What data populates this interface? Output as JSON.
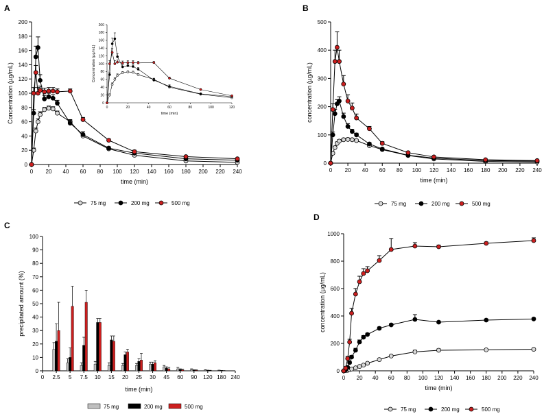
{
  "figure": {
    "panels": [
      "A",
      "B",
      "C",
      "D"
    ],
    "colors": {
      "s75": "#d9d9d9",
      "s200": "#000000",
      "s500": "#cc1f1f",
      "bar75": "#bfbfbf",
      "bar200": "#000000",
      "bar500": "#cc1f1f"
    }
  },
  "chart_data": [
    {
      "panel": "A",
      "type": "line",
      "xlabel": "time (min)",
      "ylabel": "Concentration (µg/mL)",
      "xlim": [
        0,
        240
      ],
      "ylim": [
        0,
        200
      ],
      "xticks": [
        0,
        20,
        40,
        60,
        80,
        100,
        120,
        140,
        160,
        180,
        200,
        220,
        240
      ],
      "yticks": [
        0,
        20,
        40,
        60,
        80,
        100,
        120,
        140,
        160,
        180,
        200
      ],
      "grid": false,
      "legend": "bottom",
      "series": [
        {
          "name": "75 mg",
          "x": [
            0,
            2.5,
            5,
            7.5,
            10,
            15,
            20,
            25,
            30,
            45,
            60,
            90,
            120,
            180,
            240
          ],
          "y": [
            0,
            20,
            47,
            60,
            70,
            77,
            79,
            78,
            72,
            60,
            40,
            22,
            13,
            5,
            3
          ],
          "err": [
            0,
            3,
            4,
            4,
            4,
            3,
            3,
            3,
            3,
            3,
            3,
            2,
            2,
            1,
            1
          ]
        },
        {
          "name": "200 mg",
          "x": [
            0,
            2.5,
            5,
            7.5,
            10,
            15,
            20,
            25,
            30,
            45,
            60,
            90,
            120,
            180,
            240
          ],
          "y": [
            0,
            72,
            151,
            164,
            118,
            92,
            95,
            93,
            86,
            58,
            42,
            23,
            16,
            8,
            6
          ],
          "err": [
            0,
            5,
            15,
            15,
            8,
            5,
            5,
            5,
            4,
            4,
            4,
            2,
            2,
            1,
            1
          ]
        },
        {
          "name": "500 mg",
          "x": [
            0,
            2.5,
            5,
            7.5,
            10,
            15,
            20,
            25,
            30,
            45,
            60,
            90,
            120,
            180,
            240
          ],
          "y": [
            0,
            100,
            129,
            100,
            104,
            102,
            103,
            103,
            102,
            103,
            63,
            34,
            18,
            11,
            8
          ],
          "err": [
            0,
            8,
            10,
            8,
            6,
            5,
            5,
            5,
            4,
            3,
            3,
            2,
            2,
            1,
            1
          ]
        }
      ],
      "inset": {
        "xlabel": "time (min)",
        "ylabel": "Concentration (µg/mL)",
        "xlim": [
          0,
          120
        ],
        "ylim": [
          0,
          200
        ],
        "xticks": [
          0,
          20,
          40,
          60,
          80,
          100,
          120
        ],
        "yticks": [
          0,
          20,
          40,
          60,
          80,
          100,
          120,
          140,
          160,
          180,
          200
        ]
      }
    },
    {
      "panel": "B",
      "type": "line",
      "xlabel": "time (min)",
      "ylabel": "concentration (µg/mL)",
      "xlim": [
        0,
        240
      ],
      "ylim": [
        0,
        500
      ],
      "xticks": [
        0,
        20,
        40,
        60,
        80,
        100,
        120,
        140,
        160,
        180,
        200,
        220,
        240
      ],
      "yticks": [
        0,
        100,
        200,
        300,
        400,
        500
      ],
      "grid": false,
      "legend": "bottom",
      "series": [
        {
          "name": "75 mg",
          "x": [
            0,
            2.5,
            5,
            7.5,
            10,
            15,
            20,
            25,
            30,
            45,
            60,
            90,
            120,
            180,
            240
          ],
          "y": [
            0,
            35,
            55,
            70,
            78,
            83,
            84,
            83,
            80,
            62,
            48,
            27,
            15,
            6,
            4
          ],
          "err": [
            0,
            4,
            5,
            5,
            5,
            5,
            5,
            5,
            4,
            4,
            3,
            2,
            2,
            1,
            1
          ]
        },
        {
          "name": "200 mg",
          "x": [
            0,
            2.5,
            5,
            7.5,
            10,
            15,
            20,
            25,
            30,
            45,
            60,
            90,
            120,
            180,
            240
          ],
          "y": [
            0,
            100,
            175,
            210,
            220,
            165,
            130,
            112,
            100,
            68,
            50,
            28,
            18,
            9,
            7
          ],
          "err": [
            0,
            10,
            15,
            15,
            15,
            12,
            10,
            8,
            6,
            5,
            4,
            3,
            2,
            1,
            1
          ]
        },
        {
          "name": "500 mg",
          "x": [
            0,
            2.5,
            5,
            7.5,
            10,
            15,
            20,
            25,
            30,
            45,
            60,
            90,
            120,
            180,
            240
          ],
          "y": [
            0,
            190,
            360,
            410,
            360,
            280,
            220,
            195,
            160,
            122,
            70,
            37,
            22,
            12,
            9
          ],
          "err": [
            0,
            20,
            40,
            55,
            40,
            30,
            22,
            18,
            14,
            8,
            6,
            4,
            3,
            2,
            2
          ]
        }
      ]
    },
    {
      "panel": "C",
      "type": "bar",
      "xlabel": "time (min)",
      "ylabel": "precipitated amount (%)",
      "ylim": [
        0,
        100
      ],
      "yticks": [
        0,
        10,
        20,
        30,
        40,
        50,
        60,
        70,
        80,
        90,
        100
      ],
      "categories": [
        "0",
        "2.5",
        "5",
        "7.5",
        "10",
        "15",
        "20",
        "25",
        "30",
        "45",
        "60",
        "90",
        "120",
        "180",
        "240"
      ],
      "grid": false,
      "legend": "bottom",
      "series": [
        {
          "name": "75 mg",
          "values": [
            0,
            16,
            6,
            4,
            5,
            4,
            4,
            4,
            5,
            3,
            1.5,
            1,
            0.5,
            0.3,
            0
          ],
          "err": [
            0,
            5,
            3,
            2,
            2,
            2,
            1.5,
            1.5,
            1.5,
            1,
            1,
            0.5,
            0.3,
            0.2,
            0
          ]
        },
        {
          "name": "200 mg",
          "values": [
            0,
            22,
            10,
            19,
            36,
            23,
            12,
            7,
            5,
            2,
            1,
            0.5,
            0.3,
            0.2,
            0
          ],
          "err": [
            0,
            13,
            7,
            6,
            3,
            3,
            2,
            2,
            1.5,
            1,
            0.5,
            0.3,
            0.2,
            0.1,
            0
          ]
        },
        {
          "name": "500 mg",
          "values": [
            0,
            30,
            48,
            51,
            36,
            22,
            14,
            8,
            6,
            1.5,
            0.7,
            0.4,
            0.2,
            0.1,
            0
          ],
          "err": [
            0,
            21,
            15,
            9,
            3,
            4,
            2,
            5,
            1.5,
            1,
            0.5,
            0.3,
            0.2,
            0.1,
            0
          ]
        }
      ]
    },
    {
      "panel": "D",
      "type": "line",
      "xlabel": "time (min)",
      "ylabel": "concentration (µg/mL)",
      "xlim": [
        0,
        240
      ],
      "ylim": [
        0,
        1000
      ],
      "xticks": [
        0,
        20,
        40,
        60,
        80,
        100,
        120,
        140,
        160,
        180,
        200,
        220,
        240
      ],
      "yticks": [
        0,
        200,
        400,
        600,
        800,
        1000
      ],
      "grid": false,
      "legend": "bottom",
      "series": [
        {
          "name": "75 mg",
          "x": [
            0,
            2.5,
            5,
            7.5,
            10,
            15,
            20,
            25,
            30,
            45,
            60,
            90,
            120,
            180,
            240
          ],
          "y": [
            0,
            2,
            4,
            8,
            13,
            22,
            32,
            42,
            55,
            82,
            108,
            138,
            150,
            153,
            157
          ],
          "err": [
            0,
            1,
            1,
            1,
            2,
            3,
            3,
            3,
            4,
            5,
            6,
            12,
            10,
            5,
            5
          ]
        },
        {
          "name": "200 mg",
          "x": [
            0,
            2.5,
            5,
            7.5,
            10,
            15,
            20,
            25,
            30,
            45,
            60,
            90,
            120,
            180,
            240
          ],
          "y": [
            0,
            8,
            25,
            60,
            100,
            150,
            210,
            245,
            265,
            310,
            335,
            375,
            355,
            370,
            378
          ],
          "err": [
            0,
            3,
            6,
            10,
            12,
            14,
            15,
            12,
            10,
            10,
            10,
            35,
            8,
            8,
            8
          ]
        },
        {
          "name": "500 mg",
          "x": [
            0,
            2.5,
            5,
            7.5,
            10,
            15,
            20,
            25,
            30,
            45,
            60,
            90,
            120,
            180,
            240
          ],
          "y": [
            0,
            20,
            90,
            210,
            420,
            560,
            650,
            710,
            730,
            805,
            885,
            910,
            905,
            930,
            950
          ],
          "err": [
            0,
            5,
            15,
            20,
            35,
            40,
            40,
            35,
            30,
            35,
            80,
            25,
            12,
            10,
            20
          ]
        }
      ]
    }
  ]
}
